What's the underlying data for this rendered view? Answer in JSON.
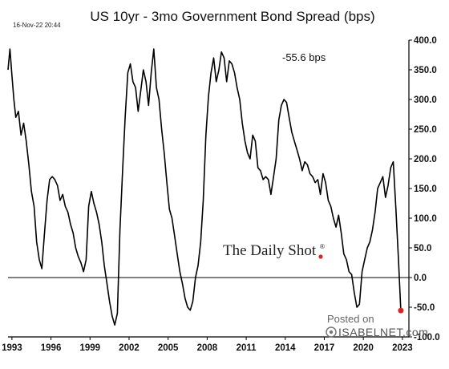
{
  "header": {
    "title": "US 10yr - 3mo Government Bond Spread (bps)",
    "timestamp": "16-Nov-22 20:44"
  },
  "annotation": {
    "last_value_label": "-55.6 bps"
  },
  "watermarks": {
    "daily_shot": "The Daily Shot",
    "daily_shot_mark": "®",
    "posted_on": "Posted on",
    "isabelnet": "ISABELNET.com"
  },
  "colors": {
    "line": "#000000",
    "endpoint": "#d62728",
    "zero_line": "#000000",
    "axis": "#000000"
  },
  "chart_data": {
    "type": "line",
    "title": "US 10yr - 3mo Government Bond Spread (bps)",
    "xlabel": "",
    "ylabel": "",
    "xlim": [
      1992.7,
      2023.5
    ],
    "ylim": [
      -100,
      400
    ],
    "y_axis_side": "right",
    "grid": false,
    "legend": "none",
    "x_tick_labels": [
      {
        "value": 1993,
        "label": "1993"
      },
      {
        "value": 1996,
        "label": "1996"
      },
      {
        "value": 1999,
        "label": "1999"
      },
      {
        "value": 2002,
        "label": "2002"
      },
      {
        "value": 2005,
        "label": "2005"
      },
      {
        "value": 2008,
        "label": "2008"
      },
      {
        "value": 2011,
        "label": "2011"
      },
      {
        "value": 2014,
        "label": "2014"
      },
      {
        "value": 2017,
        "label": "2017"
      },
      {
        "value": 2020,
        "label": "2020"
      },
      {
        "value": 2023,
        "label": "2023"
      }
    ],
    "y_tick_labels": [
      {
        "value": 400,
        "label": "400.0"
      },
      {
        "value": 350,
        "label": "350.0"
      },
      {
        "value": 300,
        "label": "300.0"
      },
      {
        "value": 250,
        "label": "250.0"
      },
      {
        "value": 200,
        "label": "200.0"
      },
      {
        "value": 150,
        "label": "150.0"
      },
      {
        "value": 100,
        "label": "100.0"
      },
      {
        "value": 50,
        "label": "50.0"
      },
      {
        "value": 0,
        "label": "0.0"
      },
      {
        "value": -50,
        "label": "-50.0"
      },
      {
        "value": -100,
        "label": "-100.0"
      }
    ],
    "reference_line": 0,
    "last_point": {
      "x": 2022.88,
      "y": -55.6
    },
    "series": [
      {
        "x": [
          1992.7,
          1992.85,
          1993.0,
          1993.15,
          1993.3,
          1993.5,
          1993.7,
          1993.9,
          1994.1,
          1994.3,
          1994.5,
          1994.7,
          1994.9,
          1995.1,
          1995.3,
          1995.5,
          1995.7,
          1995.9,
          1996.1,
          1996.3,
          1996.5,
          1996.7,
          1996.9,
          1997.1,
          1997.3,
          1997.5,
          1997.7,
          1997.9,
          1998.1,
          1998.3,
          1998.5,
          1998.7,
          1998.9,
          1999.1,
          1999.3,
          1999.5,
          1999.7,
          1999.9,
          2000.1,
          2000.3,
          2000.5,
          2000.7,
          2000.9,
          2001.1,
          2001.3,
          2001.5,
          2001.7,
          2001.9,
          2002.1,
          2002.3,
          2002.5,
          2002.7,
          2002.9,
          2003.1,
          2003.3,
          2003.5,
          2003.7,
          2003.9,
          2004.1,
          2004.3,
          2004.5,
          2004.7,
          2004.9,
          2005.1,
          2005.3,
          2005.5,
          2005.7,
          2005.9,
          2006.1,
          2006.3,
          2006.5,
          2006.7,
          2006.9,
          2007.1,
          2007.3,
          2007.5,
          2007.7,
          2007.9,
          2008.1,
          2008.3,
          2008.5,
          2008.7,
          2008.9,
          2009.1,
          2009.3,
          2009.5,
          2009.7,
          2009.9,
          2010.1,
          2010.3,
          2010.5,
          2010.7,
          2010.9,
          2011.1,
          2011.3,
          2011.5,
          2011.7,
          2011.9,
          2012.1,
          2012.3,
          2012.5,
          2012.7,
          2012.9,
          2013.1,
          2013.3,
          2013.5,
          2013.7,
          2013.9,
          2014.1,
          2014.3,
          2014.5,
          2014.7,
          2014.9,
          2015.1,
          2015.3,
          2015.5,
          2015.7,
          2015.9,
          2016.1,
          2016.3,
          2016.5,
          2016.7,
          2016.9,
          2017.1,
          2017.3,
          2017.5,
          2017.7,
          2017.9,
          2018.1,
          2018.3,
          2018.5,
          2018.7,
          2018.9,
          2019.1,
          2019.3,
          2019.5,
          2019.7,
          2019.9,
          2020.1,
          2020.3,
          2020.5,
          2020.7,
          2020.9,
          2021.1,
          2021.3,
          2021.5,
          2021.7,
          2021.9,
          2022.1,
          2022.3,
          2022.5,
          2022.7,
          2022.88
        ],
        "y": [
          350,
          385,
          340,
          300,
          270,
          280,
          240,
          260,
          230,
          190,
          145,
          120,
          60,
          30,
          15,
          75,
          130,
          165,
          170,
          165,
          155,
          130,
          140,
          120,
          110,
          90,
          75,
          50,
          35,
          25,
          10,
          30,
          120,
          145,
          125,
          110,
          90,
          60,
          20,
          -10,
          -40,
          -65,
          -80,
          -60,
          80,
          180,
          270,
          345,
          360,
          330,
          320,
          280,
          315,
          350,
          330,
          290,
          345,
          385,
          320,
          300,
          250,
          210,
          160,
          115,
          100,
          70,
          40,
          10,
          -10,
          -35,
          -50,
          -55,
          -40,
          0,
          20,
          60,
          130,
          240,
          305,
          345,
          370,
          330,
          350,
          380,
          370,
          330,
          365,
          360,
          345,
          320,
          300,
          260,
          230,
          210,
          200,
          240,
          230,
          185,
          180,
          165,
          170,
          165,
          140,
          170,
          200,
          265,
          290,
          300,
          295,
          270,
          245,
          230,
          215,
          200,
          180,
          195,
          190,
          175,
          170,
          160,
          165,
          140,
          175,
          160,
          130,
          120,
          100,
          85,
          105,
          75,
          40,
          30,
          10,
          5,
          -25,
          -50,
          -45,
          10,
          30,
          50,
          60,
          80,
          110,
          150,
          160,
          170,
          135,
          155,
          185,
          195,
          115,
          30,
          -55.6
        ]
      }
    ]
  }
}
